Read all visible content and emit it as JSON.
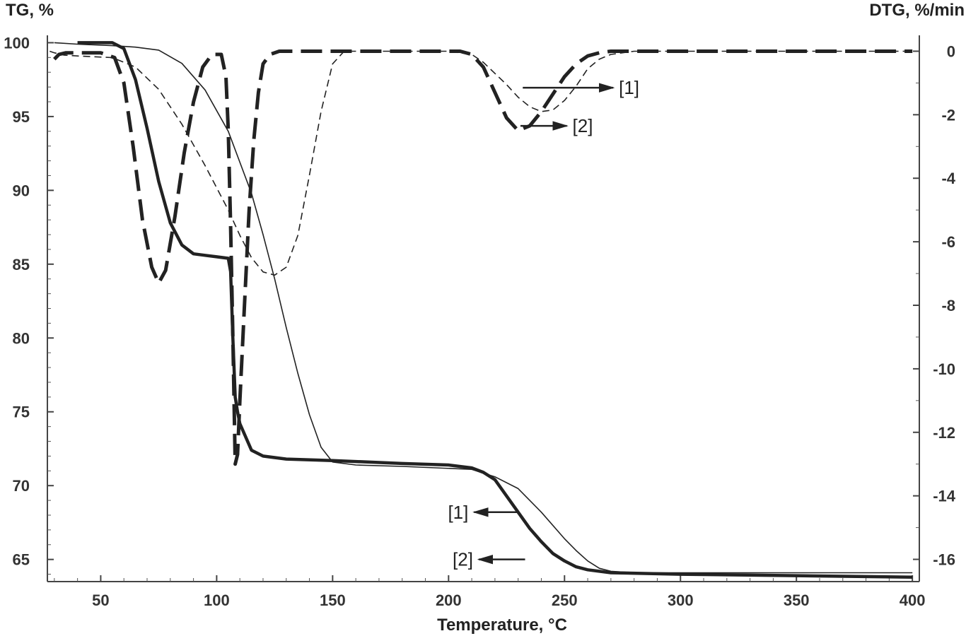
{
  "chart_data": {
    "type": "line",
    "title": "",
    "xlabel": "Temperature, °C",
    "ylabel_left": "TG, %",
    "ylabel_right": "DTG, %/min",
    "xlim": [
      27,
      403
    ],
    "ylim_left": [
      63.5,
      100.5
    ],
    "ylim_right": [
      -16.7,
      0.5
    ],
    "x_ticks": [
      50,
      100,
      150,
      200,
      250,
      300,
      350,
      400
    ],
    "y_left_ticks": [
      65,
      70,
      75,
      80,
      85,
      90,
      95,
      100
    ],
    "y_right_ticks": [
      0,
      -2,
      -4,
      -6,
      -8,
      -10,
      -12,
      -14,
      -16
    ],
    "grid": false,
    "legend": "none",
    "series": [
      {
        "axis": "left",
        "style": "thin-solid",
        "color": "#222222",
        "x": [
          30,
          40,
          55,
          65,
          75,
          85,
          95,
          105,
          115,
          120,
          125,
          130,
          135,
          140,
          145,
          150,
          160,
          180,
          210,
          220,
          230,
          240,
          250,
          255,
          260,
          265,
          270,
          280,
          300,
          350,
          400
        ],
        "y": [
          100,
          99.9,
          99.8,
          99.7,
          99.5,
          98.6,
          96.8,
          94.0,
          89.8,
          87.0,
          84.0,
          80.7,
          77.6,
          74.8,
          72.6,
          71.6,
          71.4,
          71.3,
          71.1,
          70.6,
          69.8,
          68.2,
          66.4,
          65.6,
          64.9,
          64.4,
          64.2,
          64.1,
          64.1,
          64.1,
          64.1
        ]
      },
      {
        "axis": "left",
        "style": "thick-solid",
        "color": "#222222",
        "x": [
          40,
          55,
          60,
          65,
          70,
          75,
          80,
          85,
          90,
          95,
          100,
          105,
          106,
          107,
          108,
          109,
          110,
          115,
          120,
          130,
          150,
          180,
          200,
          210,
          215,
          220,
          225,
          230,
          235,
          240,
          245,
          250,
          255,
          260,
          270,
          300,
          350,
          400
        ],
        "y": [
          100,
          100,
          99.6,
          97.5,
          94.2,
          90.6,
          87.8,
          86.3,
          85.7,
          85.6,
          85.5,
          85.4,
          84.5,
          80,
          76,
          75,
          74.2,
          72.4,
          72.0,
          71.8,
          71.7,
          71.5,
          71.4,
          71.2,
          70.9,
          70.4,
          69.3,
          68.2,
          67.1,
          66.2,
          65.4,
          64.9,
          64.5,
          64.3,
          64.1,
          64.0,
          63.9,
          63.8
        ]
      },
      {
        "axis": "right",
        "style": "thin-dashed",
        "color": "#222222",
        "x": [
          28,
          30,
          34,
          40,
          55,
          65,
          75,
          85,
          95,
          105,
          110,
          115,
          120,
          125,
          130,
          135,
          140,
          145,
          150,
          155,
          160,
          200,
          210,
          215,
          220,
          225,
          230,
          235,
          240,
          245,
          250,
          255,
          260,
          265,
          270,
          280,
          300,
          400
        ],
        "y": [
          0,
          -0.05,
          -0.12,
          -0.15,
          -0.2,
          -0.5,
          -1.2,
          -2.3,
          -3.6,
          -5.0,
          -5.8,
          -6.5,
          -6.95,
          -7.05,
          -6.8,
          -5.8,
          -3.9,
          -1.9,
          -0.4,
          0,
          0,
          0,
          -0.1,
          -0.35,
          -0.7,
          -1.05,
          -1.45,
          -1.75,
          -1.9,
          -1.85,
          -1.55,
          -1.1,
          -0.55,
          -0.25,
          -0.1,
          0,
          0,
          0
        ]
      },
      {
        "axis": "right",
        "style": "thick-dashed",
        "color": "#222222",
        "x": [
          30,
          32,
          35,
          40,
          50,
          56,
          60,
          64,
          68,
          72,
          75,
          78,
          82,
          86,
          90,
          94,
          98,
          102,
          104,
          105,
          106,
          107,
          108,
          109,
          110,
          112,
          114,
          116,
          118,
          120,
          123,
          127,
          135,
          160,
          205,
          210,
          215,
          220,
          225,
          230,
          235,
          240,
          245,
          250,
          255,
          260,
          265,
          270,
          350,
          400
        ],
        "y": [
          -0.25,
          -0.1,
          -0.05,
          -0.05,
          -0.05,
          -0.2,
          -1.0,
          -3.0,
          -5.3,
          -6.8,
          -7.3,
          -6.9,
          -5.2,
          -3.2,
          -1.6,
          -0.5,
          -0.1,
          -0.1,
          -0.8,
          -2.5,
          -5.5,
          -9.0,
          -13.0,
          -12.7,
          -11.0,
          -8.0,
          -5.0,
          -2.8,
          -1.3,
          -0.4,
          -0.1,
          0,
          0,
          0,
          0,
          -0.1,
          -0.5,
          -1.3,
          -2.1,
          -2.5,
          -2.35,
          -1.9,
          -1.35,
          -0.8,
          -0.4,
          -0.15,
          -0.05,
          0,
          0,
          0
        ]
      }
    ],
    "annotations": [
      {
        "text": "[1]",
        "x": 232,
        "y_right": -1.15,
        "arrow_dir": "right",
        "axis": "right",
        "x_to": 271
      },
      {
        "text": "[2]",
        "x": 231,
        "y_right": -2.35,
        "arrow_dir": "right",
        "axis": "right",
        "x_to": 251
      },
      {
        "text": "[1]",
        "x": 230,
        "y_left": 68.2,
        "arrow_dir": "left",
        "axis": "left",
        "x_to": 211
      },
      {
        "text": "[2]",
        "x": 233,
        "y_left": 65.0,
        "arrow_dir": "left",
        "axis": "left",
        "x_to": 213
      }
    ]
  }
}
